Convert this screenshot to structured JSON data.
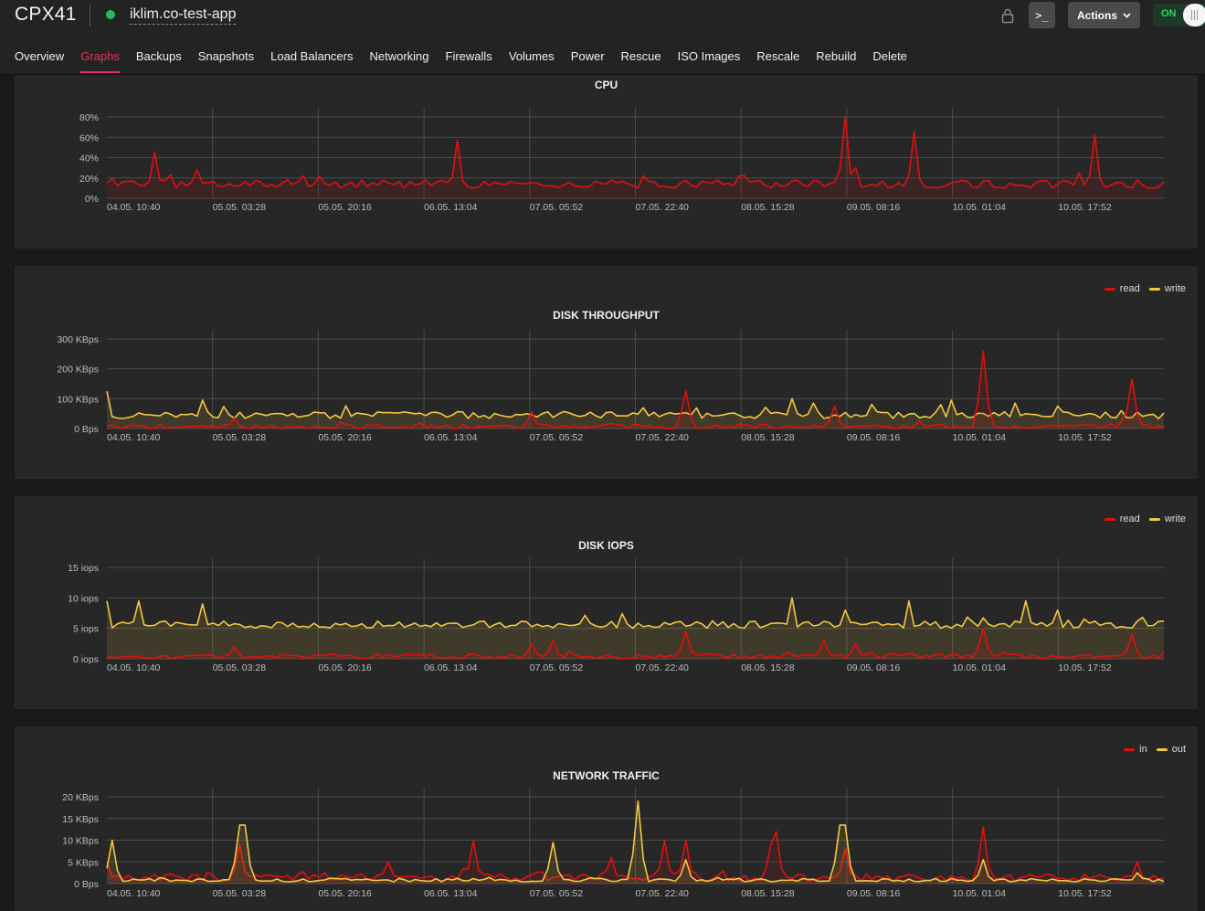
{
  "server": {
    "type": "CPX41",
    "hostname": "iklim.co-test-app",
    "status_color": "#20c05c"
  },
  "toolbar": {
    "console_label": ">_",
    "actions_label": "Actions",
    "power_label": "ON",
    "lock_icon": "lock-icon"
  },
  "tabs": [
    {
      "label": "Overview"
    },
    {
      "label": "Graphs",
      "active": true
    },
    {
      "label": "Backups"
    },
    {
      "label": "Snapshots"
    },
    {
      "label": "Load Balancers"
    },
    {
      "label": "Networking"
    },
    {
      "label": "Firewalls"
    },
    {
      "label": "Volumes"
    },
    {
      "label": "Power"
    },
    {
      "label": "Rescue"
    },
    {
      "label": "ISO Images"
    },
    {
      "label": "Rescale"
    },
    {
      "label": "Rebuild"
    },
    {
      "label": "Delete"
    }
  ],
  "colors": {
    "accent": "#e8315a",
    "series_red": "#e01010",
    "series_yellow": "#f2c744"
  },
  "chart_data": [
    {
      "type": "line",
      "title": "CPU",
      "x": [
        "04.05. 10:40",
        "05.05. 03:28",
        "05.05. 20:16",
        "06.05. 13:04",
        "07.05. 05:52",
        "07.05. 22:40",
        "08.05. 15:28",
        "09.05. 08:16",
        "10.05. 01:04",
        "10.05. 17:52"
      ],
      "yticks": [
        "0%",
        "20%",
        "40%",
        "60%",
        "80%"
      ],
      "ylim": [
        0,
        80
      ],
      "legend": [],
      "series": [
        {
          "color": "#e01010",
          "baseline": 14,
          "noise": 4,
          "seed": 11,
          "spikes": [
            [
              0.045,
              45
            ],
            [
              0.085,
              28
            ],
            [
              0.33,
              57
            ],
            [
              0.51,
              22
            ],
            [
              0.6,
              22
            ],
            [
              0.71,
              30
            ],
            [
              0.701,
              80
            ],
            [
              0.765,
              65
            ],
            [
              0.92,
              25
            ],
            [
              0.935,
              62
            ]
          ]
        }
      ]
    },
    {
      "type": "area",
      "title": "DISK THROUGHPUT",
      "x": [
        "04.05. 10:40",
        "05.05. 03:28",
        "05.05. 20:16",
        "06.05. 13:04",
        "07.05. 05:52",
        "07.05. 22:40",
        "08.05. 15:28",
        "09.05. 08:16",
        "10.05. 01:04",
        "10.05. 17:52"
      ],
      "yticks": [
        "0 Bps",
        "100 KBps",
        "200 KBps",
        "300 KBps"
      ],
      "ylim": [
        0,
        300
      ],
      "legend": [
        {
          "name": "read",
          "color": "#e01010"
        },
        {
          "name": "write",
          "color": "#f2c744"
        }
      ],
      "series": [
        {
          "name": "write",
          "color": "#f2c744",
          "baseline": 45,
          "noise": 12,
          "seed": 7,
          "spikes": [
            [
              0.0,
              125
            ],
            [
              0.09,
              95
            ],
            [
              0.65,
              100
            ],
            [
              0.67,
              85
            ],
            [
              0.79,
              80
            ],
            [
              0.8,
              95
            ],
            [
              0.86,
              85
            ],
            [
              0.9,
              75
            ],
            [
              0.96,
              60
            ]
          ]
        },
        {
          "name": "read",
          "color": "#e01010",
          "baseline": 6,
          "noise": 8,
          "seed": 3,
          "spikes": [
            [
              0.12,
              35
            ],
            [
              0.4,
              55
            ],
            [
              0.55,
              125
            ],
            [
              0.69,
              75
            ],
            [
              0.77,
              25
            ],
            [
              0.83,
              260
            ],
            [
              0.97,
              165
            ]
          ]
        }
      ]
    },
    {
      "type": "area",
      "title": "DISK IOPS",
      "x": [
        "04.05. 10:40",
        "05.05. 03:28",
        "05.05. 20:16",
        "06.05. 13:04",
        "07.05. 05:52",
        "07.05. 22:40",
        "08.05. 15:28",
        "09.05. 08:16",
        "10.05. 01:04",
        "10.05. 17:52"
      ],
      "yticks": [
        "0 iops",
        "5 iops",
        "10 iops",
        "15 iops"
      ],
      "ylim": [
        0,
        15
      ],
      "legend": [
        {
          "name": "read",
          "color": "#e01010"
        },
        {
          "name": "write",
          "color": "#f2c744"
        }
      ],
      "series": [
        {
          "name": "write",
          "color": "#f2c744",
          "baseline": 5.6,
          "noise": 0.6,
          "seed": 5,
          "spikes": [
            [
              0.0,
              9.5
            ],
            [
              0.03,
              9.5
            ],
            [
              0.09,
              9
            ],
            [
              0.65,
              10
            ],
            [
              0.7,
              8
            ],
            [
              0.76,
              9.5
            ],
            [
              0.87,
              9.5
            ],
            [
              0.9,
              8
            ],
            [
              0.93,
              5.5
            ]
          ]
        },
        {
          "name": "read",
          "color": "#e01010",
          "baseline": 0.4,
          "noise": 0.4,
          "seed": 9,
          "spikes": [
            [
              0.12,
              2
            ],
            [
              0.4,
              2.5
            ],
            [
              0.42,
              3
            ],
            [
              0.55,
              4.5
            ],
            [
              0.68,
              3
            ],
            [
              0.71,
              2.5
            ],
            [
              0.83,
              5
            ],
            [
              0.97,
              4
            ]
          ]
        }
      ]
    },
    {
      "type": "area",
      "title": "NETWORK TRAFFIC",
      "x": [
        "04.05. 10:40",
        "05.05. 03:28",
        "05.05. 20:16",
        "06.05. 13:04",
        "07.05. 05:52",
        "07.05. 22:40",
        "08.05. 15:28",
        "09.05. 08:16",
        "10.05. 01:04",
        "10.05. 17:52"
      ],
      "yticks": [
        "0 Bps",
        "5 KBps",
        "10 KBps",
        "15 KBps",
        "20 KBps"
      ],
      "ylim": [
        0,
        20
      ],
      "legend": [
        {
          "name": "in",
          "color": "#e01010"
        },
        {
          "name": "out",
          "color": "#f2c744"
        }
      ],
      "series": [
        {
          "name": "in",
          "color": "#e01010",
          "baseline": 1.4,
          "noise": 0.8,
          "seed": 13,
          "spikes": [
            [
              0.0,
              5
            ],
            [
              0.125,
              9
            ],
            [
              0.265,
              5
            ],
            [
              0.345,
              10
            ],
            [
              0.475,
              6
            ],
            [
              0.475,
              6
            ],
            [
              0.53,
              10
            ],
            [
              0.548,
              10
            ],
            [
              0.63,
              9
            ],
            [
              0.635,
              12
            ],
            [
              0.7,
              8
            ],
            [
              0.83,
              13
            ],
            [
              0.975,
              5
            ]
          ]
        },
        {
          "name": "out",
          "color": "#f2c744",
          "baseline": 0.8,
          "noise": 0.4,
          "seed": 17,
          "spikes": [
            [
              0.006,
              10
            ],
            [
              0.125,
              13.5
            ],
            [
              0.132,
              13.5
            ],
            [
              0.42,
              9.5
            ],
            [
              0.502,
              19
            ],
            [
              0.548,
              5.5
            ],
            [
              0.693,
              13.5
            ],
            [
              0.7,
              13.5
            ],
            [
              0.83,
              5.5
            ],
            [
              0.975,
              2.5
            ]
          ]
        }
      ]
    }
  ]
}
